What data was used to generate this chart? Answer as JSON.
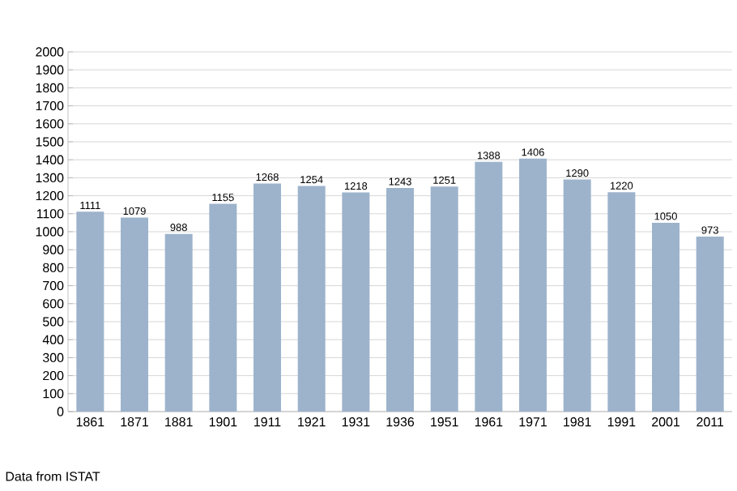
{
  "chart_data": {
    "type": "bar",
    "categories": [
      "1861",
      "1871",
      "1881",
      "1901",
      "1911",
      "1921",
      "1931",
      "1936",
      "1951",
      "1961",
      "1971",
      "1981",
      "1991",
      "2001",
      "2011"
    ],
    "values": [
      1111,
      1079,
      988,
      1155,
      1268,
      1254,
      1218,
      1243,
      1251,
      1388,
      1406,
      1290,
      1220,
      1050,
      973
    ],
    "color": "#9db3cc",
    "ylim": [
      0,
      2000
    ],
    "yticks": [
      0,
      100,
      200,
      300,
      400,
      500,
      600,
      700,
      800,
      900,
      1000,
      1100,
      1200,
      1300,
      1400,
      1500,
      1600,
      1700,
      1800,
      1900,
      2000
    ],
    "grid": "y",
    "data_labels": true,
    "annotations": [
      "Data from ISTAT"
    ]
  }
}
